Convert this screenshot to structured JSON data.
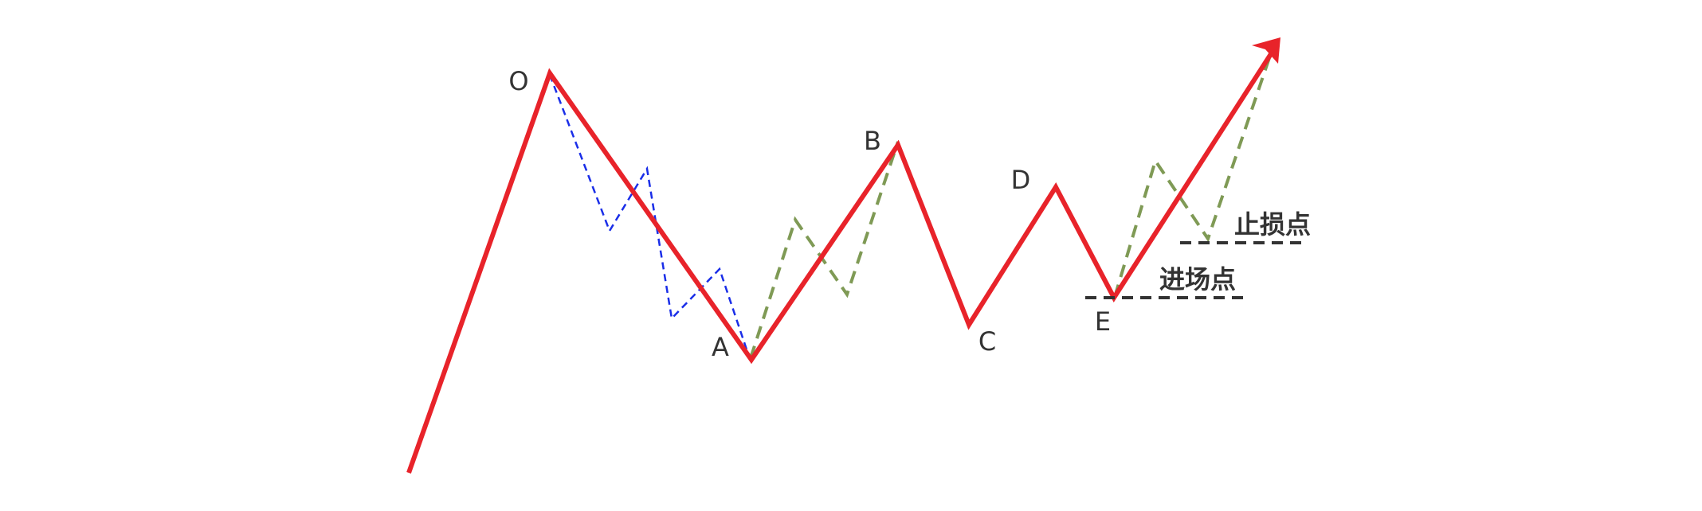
{
  "colors": {
    "main_path": "#e8232a",
    "subwave_blue": "#1a2ee8",
    "subwave_green": "#7f9a55",
    "level_line": "#333333",
    "text": "#333333"
  },
  "points": {
    "O": "O",
    "A": "A",
    "B": "B",
    "C": "C",
    "D": "D",
    "E": "E"
  },
  "levels": {
    "stop_loss": "止损点",
    "entry": "进场点"
  }
}
